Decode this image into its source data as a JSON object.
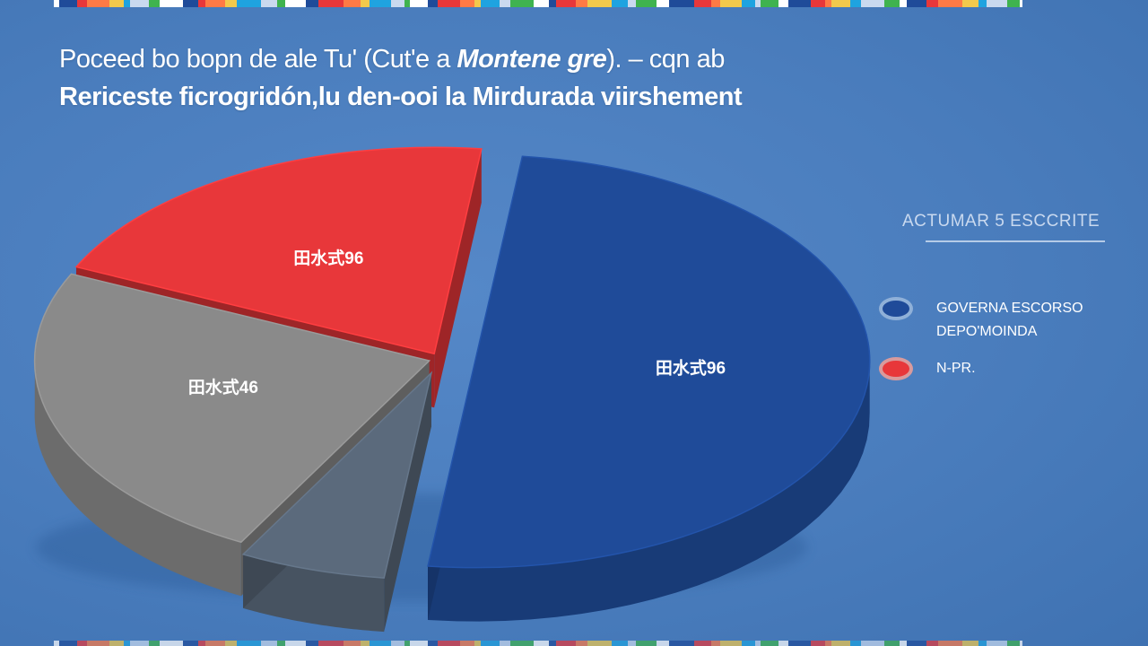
{
  "header": {
    "title_plain": "Poceed bo bopn de ale Tu' (Cut'e a ",
    "title_bold": "Montene gre",
    "title_tail": "). – cqn ab",
    "subtitle": "Rericeste ficrogridón,lu den-ooi la Mirdurada viirshement"
  },
  "legend": {
    "title": "ACTUMAR 5 ESCCRITE",
    "items": [
      {
        "label": "GOVERNA ESCORSO\nDEPO'MOINDA",
        "color": "#1f4b99"
      },
      {
        "label": "N-PR.",
        "color": "#e8373a"
      }
    ]
  },
  "colors": {
    "blue": "#1f4b99",
    "red": "#e8373a",
    "gray": "#8a8a8a",
    "dark_gray": "#5b6a7c"
  },
  "chart_data": {
    "type": "pie",
    "style": "3d-exploded",
    "title": "Poceed bo bopn de ale Tu' (Cut'e a Montene gre). – cqn ab",
    "subtitle": "Rericeste ficrogridón,lu den-ooi la Mirdurada viirshement",
    "legend_title": "ACTUMAR 5 ESCCRITE",
    "legend_position": "right",
    "slices": [
      {
        "name": "GOVERNA ESCORSO DEPO'MOINDA",
        "value": 50,
        "label": "田水式96",
        "color": "#1f4b99"
      },
      {
        "name": "",
        "value": 6,
        "label": "",
        "color": "#5b6a7c"
      },
      {
        "name": "",
        "value": 24,
        "label": "田水式46",
        "color": "#8a8a8a"
      },
      {
        "name": "N-PR.",
        "value": 20,
        "label": "田水式96",
        "color": "#e8373a"
      }
    ]
  }
}
